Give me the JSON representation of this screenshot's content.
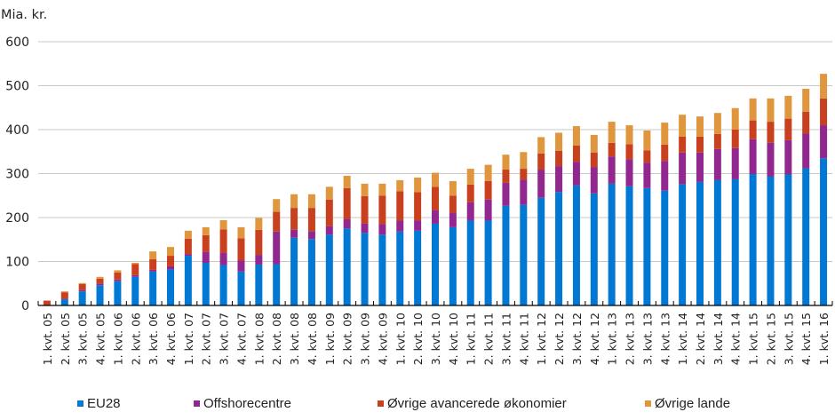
{
  "chart_data": {
    "type": "bar",
    "stacked": true,
    "title": "",
    "ylabel": "Mia. kr.",
    "xlabel": "",
    "ylim": [
      0,
      600
    ],
    "yticks": [
      0,
      100,
      200,
      300,
      400,
      500,
      600
    ],
    "grid": true,
    "legend_position": "bottom",
    "categories": [
      "1. kvt. 05",
      "2. kvt. 05",
      "3. kvt. 05",
      "4. kvt. 05",
      "1. kvt. 06",
      "2. kvt. 06",
      "3. kvt. 06",
      "4. kvt. 06",
      "1. kvt. 07",
      "2. kvt. 07",
      "3. kvt. 07",
      "4. kvt. 07",
      "1. kvt. 08",
      "2. kvt. 08",
      "3. kvt. 08",
      "4. kvt. 08",
      "1. kvt. 09",
      "2. kvt. 09",
      "3. kvt. 09",
      "4. kvt. 09",
      "1. kvt. 10",
      "2. kvt. 10",
      "3. kvt. 10",
      "4. kvt. 10",
      "1. kvt. 11",
      "2. kvt. 11",
      "3. kvt. 11",
      "4. kvt. 11",
      "1. kvt. 12",
      "2. kvt. 12",
      "3. kvt. 12",
      "4. kvt. 12",
      "1. kvt. 13",
      "2. kvt. 13",
      "3. kvt. 13",
      "4. kvt. 13",
      "1. kvt. 14",
      "2. kvt. 14",
      "3. kvt. 14",
      "4. kvt. 14",
      "1. kvt. 15",
      "2. kvt. 15",
      "3. kvt. 15",
      "4. kvt. 15",
      "1. kvt. 16"
    ],
    "series": [
      {
        "name": "EU28",
        "color": "#0078D4",
        "values": [
          0,
          14,
          32,
          46,
          55,
          65,
          77,
          82,
          113,
          97,
          92,
          77,
          93,
          94,
          154,
          151,
          161,
          175,
          165,
          161,
          168,
          170,
          186,
          178,
          193,
          193,
          227,
          229,
          245,
          258,
          273,
          255,
          277,
          271,
          267,
          261,
          276,
          281,
          285,
          287,
          299,
          293,
          298,
          312,
          335
        ]
      },
      {
        "name": "Offshorecentre",
        "color": "#92278F",
        "values": [
          0,
          1,
          3,
          4,
          4,
          4,
          4,
          7,
          4,
          25,
          28,
          25,
          22,
          74,
          18,
          18,
          19,
          21,
          21,
          24,
          25,
          23,
          31,
          33,
          42,
          48,
          52,
          57,
          64,
          59,
          54,
          60,
          62,
          62,
          58,
          68,
          72,
          67,
          71,
          71,
          79,
          77,
          78,
          79,
          75
        ]
      },
      {
        "name": "Øvrige avancerede økonomier",
        "color": "#C8401E",
        "values": [
          11,
          15,
          14,
          11,
          16,
          25,
          24,
          24,
          35,
          38,
          53,
          51,
          57,
          45,
          50,
          53,
          61,
          71,
          63,
          65,
          67,
          65,
          53,
          39,
          40,
          42,
          30,
          25,
          37,
          35,
          37,
          33,
          31,
          34,
          28,
          37,
          36,
          36,
          34,
          42,
          43,
          48,
          49,
          50,
          61
        ]
      },
      {
        "name": "Øvrige lande",
        "color": "#E0963C",
        "values": [
          -1,
          2,
          2,
          4,
          5,
          3,
          18,
          20,
          18,
          18,
          21,
          25,
          27,
          29,
          31,
          31,
          29,
          28,
          28,
          27,
          25,
          33,
          32,
          33,
          36,
          37,
          34,
          38,
          37,
          41,
          44,
          40,
          48,
          43,
          45,
          50,
          50,
          46,
          48,
          49,
          50,
          53,
          52,
          52,
          56
        ]
      }
    ]
  }
}
